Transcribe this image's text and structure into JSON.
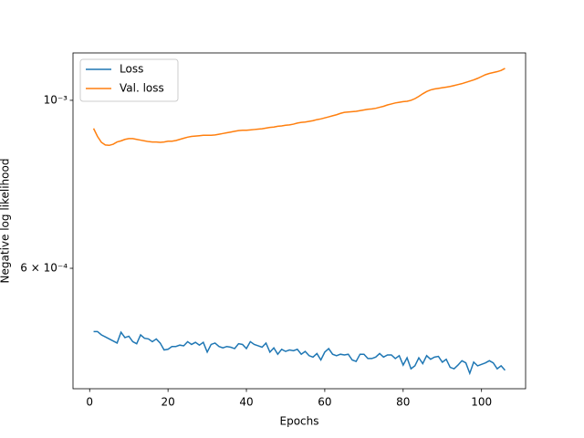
{
  "chart_data": {
    "type": "line",
    "xlabel": "Epochs",
    "ylabel": "Negative log likelihood",
    "log_y": true,
    "legend": "upper left",
    "x": [
      1,
      2,
      3,
      4,
      5,
      6,
      7,
      8,
      9,
      10,
      11,
      12,
      13,
      14,
      15,
      16,
      17,
      18,
      19,
      20,
      21,
      22,
      23,
      24,
      25,
      26,
      27,
      28,
      29,
      30,
      31,
      32,
      33,
      34,
      35,
      36,
      37,
      38,
      39,
      40,
      41,
      42,
      43,
      44,
      45,
      46,
      47,
      48,
      49,
      50,
      51,
      52,
      53,
      54,
      55,
      56,
      57,
      58,
      59,
      60,
      61,
      62,
      63,
      64,
      65,
      66,
      67,
      68,
      69,
      70,
      71,
      72,
      73,
      74,
      75,
      76,
      77,
      78,
      79,
      80,
      81,
      82,
      83,
      84,
      85,
      86,
      87,
      88,
      89,
      90,
      91,
      92,
      93,
      94,
      95,
      96,
      97,
      98,
      99,
      100,
      101,
      102,
      103,
      104,
      105,
      106
    ],
    "series": [
      {
        "name": "Loss",
        "color": "#1f77b4",
        "values": [
          0.000495,
          0.000495,
          0.00049,
          0.000487,
          0.000484,
          0.000481,
          0.000478,
          0.000494,
          0.000486,
          0.000488,
          0.00048,
          0.000477,
          0.00049,
          0.000485,
          0.000484,
          0.00048,
          0.000484,
          0.000478,
          0.000468,
          0.000469,
          0.000473,
          0.000473,
          0.000475,
          0.000474,
          0.00048,
          0.000476,
          0.000479,
          0.000475,
          0.000479,
          0.000465,
          0.000476,
          0.000478,
          0.000473,
          0.000471,
          0.000473,
          0.000472,
          0.00047,
          0.000477,
          0.000476,
          0.00047,
          0.00048,
          0.000476,
          0.000474,
          0.000472,
          0.000478,
          0.000465,
          0.000471,
          0.000462,
          0.000469,
          0.000466,
          0.000468,
          0.000467,
          0.000469,
          0.000462,
          0.000466,
          0.00046,
          0.000458,
          0.000463,
          0.000454,
          0.000465,
          0.00047,
          0.000462,
          0.00046,
          0.000462,
          0.000461,
          0.000462,
          0.000454,
          0.000452,
          0.000462,
          0.000462,
          0.000456,
          0.000456,
          0.000458,
          0.000463,
          0.000458,
          0.000461,
          0.000461,
          0.000456,
          0.00046,
          0.000447,
          0.000457,
          0.000442,
          0.000446,
          0.000457,
          0.000449,
          0.00046,
          0.000455,
          0.000458,
          0.000459,
          0.000451,
          0.000455,
          0.000444,
          0.000442,
          0.000447,
          0.000453,
          0.00045,
          0.000436,
          0.000451,
          0.000446,
          0.000448,
          0.00045,
          0.000453,
          0.00045,
          0.000442,
          0.000446,
          0.00044
        ]
      },
      {
        "name": "Val. loss",
        "color": "#ff7f0e",
        "values": [
          0.000918,
          0.000896,
          0.00088,
          0.000873,
          0.000872,
          0.000875,
          0.000881,
          0.000884,
          0.000888,
          0.00089,
          0.00089,
          0.000888,
          0.000886,
          0.000884,
          0.000882,
          0.000881,
          0.000881,
          0.00088,
          0.000881,
          0.000883,
          0.000883,
          0.000885,
          0.000888,
          0.000891,
          0.000894,
          0.000896,
          0.000897,
          0.000898,
          0.000899,
          0.000899,
          0.000899,
          0.0009,
          0.000902,
          0.000904,
          0.000906,
          0.000908,
          0.00091,
          0.000912,
          0.000913,
          0.000913,
          0.000914,
          0.000915,
          0.000916,
          0.000917,
          0.000919,
          0.000921,
          0.000922,
          0.000924,
          0.000925,
          0.000927,
          0.000928,
          0.00093,
          0.000933,
          0.000935,
          0.000936,
          0.000938,
          0.00094,
          0.000943,
          0.000945,
          0.000948,
          0.000951,
          0.000954,
          0.000957,
          0.000961,
          0.000964,
          0.000965,
          0.000966,
          0.000967,
          0.000969,
          0.000971,
          0.000973,
          0.000974,
          0.000976,
          0.000979,
          0.000982,
          0.000986,
          0.000989,
          0.000992,
          0.000994,
          0.000996,
          0.000997,
          0.001,
          0.001005,
          0.001012,
          0.00102,
          0.001027,
          0.001032,
          0.001035,
          0.001037,
          0.001039,
          0.001041,
          0.001043,
          0.001046,
          0.001049,
          0.001052,
          0.001056,
          0.00106,
          0.001064,
          0.001069,
          0.001075,
          0.001081,
          0.001085,
          0.001088,
          0.001091,
          0.001095,
          0.001102
        ]
      }
    ],
    "xlim": [
      -4.25,
      111.25
    ],
    "xticks": [
      0,
      20,
      40,
      60,
      80,
      100
    ],
    "ylim": [
      0.000416,
      0.001155
    ],
    "yticks": [
      {
        "value": 0.0006,
        "label": "6 × 10⁻⁴"
      },
      {
        "value": 0.001,
        "label": "10⁻³"
      }
    ]
  }
}
